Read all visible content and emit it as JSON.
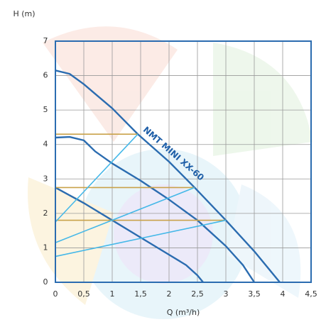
{
  "chart_data": {
    "type": "line",
    "y_label": "H (m)",
    "x_label": "Q (m³/h)",
    "annotation": "NMT MINI XX-60",
    "xlim": [
      0,
      4.5
    ],
    "ylim": [
      0,
      7
    ],
    "xticks": [
      0,
      {
        "value": 0.5,
        "label": "0,5"
      },
      1,
      {
        "value": 1.5,
        "label": "1,5"
      },
      2,
      {
        "value": 2.5,
        "label": "2,5"
      },
      3,
      {
        "value": 3.5,
        "label": "3,5"
      },
      4,
      {
        "value": 4.5,
        "label": "4,5"
      }
    ],
    "yticks": [
      0,
      1,
      2,
      3,
      4,
      5,
      6,
      7
    ],
    "grid": true,
    "series": [
      {
        "color": "#2b6cb0",
        "x": [
          0,
          0.25,
          0.5,
          1,
          1.45,
          2,
          2.45,
          3,
          3.5,
          3.95
        ],
        "values": [
          6.15,
          6.05,
          5.75,
          5.05,
          4.3,
          3.5,
          2.75,
          1.8,
          0.9,
          0
        ]
      },
      {
        "color": "#2b6cb0",
        "x": [
          0,
          0.25,
          0.5,
          0.7,
          1,
          1.5,
          2,
          2.5,
          3,
          3.3,
          3.5
        ],
        "values": [
          4.2,
          4.22,
          4.12,
          3.8,
          3.45,
          2.95,
          2.4,
          1.8,
          1.05,
          0.5,
          0
        ]
      },
      {
        "color": "#2b6cb0",
        "x": [
          0,
          0.5,
          1,
          1.5,
          2,
          2.3,
          2.5,
          2.6
        ],
        "values": [
          2.75,
          2.3,
          1.8,
          1.3,
          0.8,
          0.5,
          0.2,
          0
        ]
      },
      {
        "color": "#c9a24a",
        "x": [
          0,
          1.45
        ],
        "values": [
          4.3,
          4.3
        ]
      },
      {
        "color": "#c9a24a",
        "x": [
          0,
          2.45
        ],
        "values": [
          2.75,
          2.75
        ]
      },
      {
        "color": "#c9a24a",
        "x": [
          0,
          3.0
        ],
        "values": [
          1.8,
          1.8
        ]
      },
      {
        "color": "#45b8e8",
        "x": [
          0,
          1.45
        ],
        "values": [
          1.75,
          4.3
        ]
      },
      {
        "color": "#45b8e8",
        "x": [
          0,
          2.45
        ],
        "values": [
          1.15,
          2.75
        ]
      },
      {
        "color": "#45b8e8",
        "x": [
          0,
          3.0
        ],
        "values": [
          0.75,
          1.8
        ]
      }
    ]
  }
}
